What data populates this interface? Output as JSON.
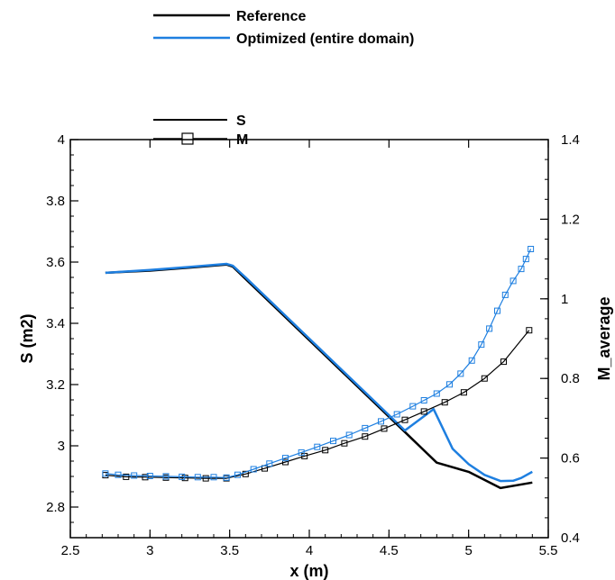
{
  "legend_top": {
    "items": [
      {
        "label": "Reference",
        "color": "#000000"
      },
      {
        "label": "Optimized (entire domain)",
        "color": "#1e7fe0"
      }
    ]
  },
  "legend_inner": {
    "items": [
      {
        "label": "S",
        "marker": "none"
      },
      {
        "label": "M",
        "marker": "square"
      }
    ]
  },
  "chart_data": {
    "type": "line",
    "xlabel": "x (m)",
    "ylabel": "S (m2)",
    "y2label": "M_average",
    "xlim": [
      2.5,
      5.5
    ],
    "ylim": [
      2.7,
      4.0
    ],
    "y2lim": [
      0.4,
      1.4
    ],
    "x_ticks": [
      "2.5",
      "3",
      "3.5",
      "4",
      "4.5",
      "5",
      "5.5"
    ],
    "y_ticks": [
      "2.8",
      "3",
      "3.2",
      "3.4",
      "3.6",
      "3.8",
      "4"
    ],
    "y2_ticks": [
      "0.4",
      "0.6",
      "0.8",
      "1",
      "1.2",
      "1.4"
    ],
    "series": [
      {
        "name": "Reference",
        "quantity": "S",
        "axis": "left",
        "color": "#000000",
        "x": [
          2.72,
          3.0,
          3.25,
          3.48,
          3.52,
          3.6,
          3.8,
          4.0,
          4.2,
          4.4,
          4.6,
          4.8,
          5.0,
          5.2,
          5.4
        ],
        "y": [
          3.565,
          3.572,
          3.582,
          3.592,
          3.585,
          3.545,
          3.445,
          3.345,
          3.245,
          3.145,
          3.045,
          2.945,
          2.915,
          2.862,
          2.88
        ]
      },
      {
        "name": "Optimized (entire domain)",
        "quantity": "S",
        "axis": "left",
        "color": "#1e7fe0",
        "x": [
          2.72,
          3.0,
          3.25,
          3.48,
          3.52,
          3.6,
          3.8,
          4.0,
          4.2,
          4.4,
          4.6,
          4.78,
          4.9,
          5.0,
          5.1,
          5.2,
          5.28,
          5.33,
          5.4
        ],
        "y": [
          3.565,
          3.574,
          3.584,
          3.594,
          3.588,
          3.55,
          3.45,
          3.35,
          3.25,
          3.15,
          3.05,
          3.12,
          2.99,
          2.94,
          2.905,
          2.885,
          2.886,
          2.895,
          2.915
        ]
      },
      {
        "name": "Reference",
        "quantity": "M",
        "axis": "right",
        "color": "#000000",
        "marker": "square",
        "x": [
          2.72,
          2.85,
          2.97,
          3.1,
          3.22,
          3.35,
          3.48,
          3.6,
          3.72,
          3.85,
          3.97,
          4.1,
          4.22,
          4.35,
          4.47,
          4.6,
          4.72,
          4.85,
          4.97,
          5.1,
          5.22,
          5.38
        ],
        "y": [
          0.557,
          0.553,
          0.552,
          0.551,
          0.55,
          0.549,
          0.549,
          0.56,
          0.574,
          0.59,
          0.605,
          0.62,
          0.637,
          0.654,
          0.674,
          0.696,
          0.717,
          0.74,
          0.765,
          0.8,
          0.842,
          0.921
        ]
      },
      {
        "name": "Optimized (entire domain)",
        "quantity": "M",
        "axis": "right",
        "color": "#1e7fe0",
        "marker": "square",
        "x": [
          2.72,
          2.8,
          2.9,
          3.0,
          3.1,
          3.2,
          3.3,
          3.4,
          3.48,
          3.55,
          3.65,
          3.75,
          3.85,
          3.95,
          4.05,
          4.15,
          4.25,
          4.35,
          4.45,
          4.55,
          4.65,
          4.72,
          4.8,
          4.88,
          4.95,
          5.02,
          5.08,
          5.13,
          5.18,
          5.23,
          5.28,
          5.33,
          5.36,
          5.39
        ],
        "y": [
          0.561,
          0.558,
          0.556,
          0.555,
          0.554,
          0.553,
          0.552,
          0.552,
          0.551,
          0.558,
          0.572,
          0.586,
          0.6,
          0.614,
          0.628,
          0.643,
          0.658,
          0.675,
          0.692,
          0.71,
          0.73,
          0.745,
          0.762,
          0.785,
          0.812,
          0.845,
          0.885,
          0.925,
          0.97,
          1.01,
          1.045,
          1.075,
          1.1,
          1.125
        ]
      }
    ]
  }
}
